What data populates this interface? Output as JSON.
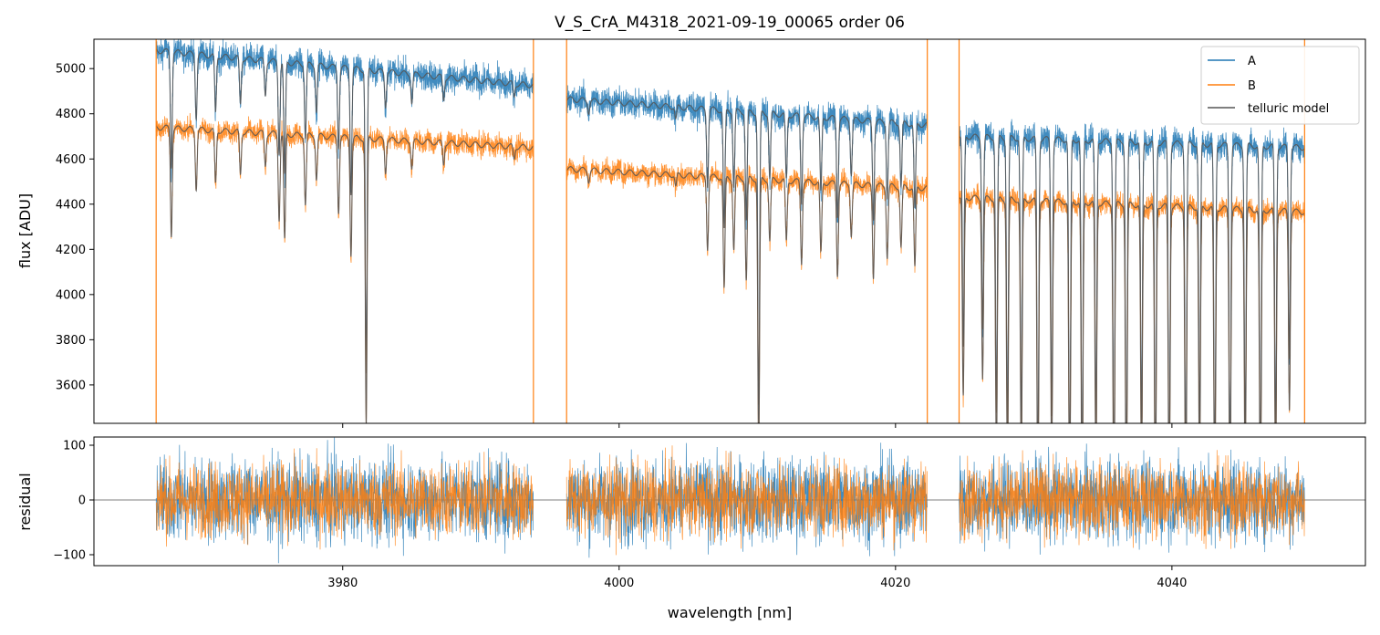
{
  "chart_data": {
    "title": "V_S_CrA_M4318_2021-09-19_00065  order 06",
    "xlabel": "wavelength [nm]",
    "xlim": [
      3962,
      4054
    ],
    "xticks": [
      3980,
      4000,
      4020,
      4040
    ],
    "segments": [
      [
        3966.5,
        3993.8
      ],
      [
        3996.2,
        4022.3
      ],
      [
        4024.6,
        4049.6
      ]
    ],
    "panels": [
      {
        "id": "flux",
        "type": "line",
        "ylabel": "flux [ADU]",
        "ylim": [
          3430,
          5130
        ],
        "yticks": [
          3600,
          3800,
          4000,
          4200,
          4400,
          4600,
          4800,
          5000
        ],
        "legend": {
          "placement": "top-right"
        },
        "series": [
          {
            "name": "A",
            "color": "#1f77b4",
            "segment_levels": [
              [
                5080,
                4925
              ],
              [
                4865,
                4750
              ],
              [
                4700,
                4650
              ]
            ],
            "noise": 45
          },
          {
            "name": "B",
            "color": "#ff7f0e",
            "segment_levels": [
              [
                4740,
                4650
              ],
              [
                4555,
                4470
              ],
              [
                4430,
                4365
              ]
            ],
            "noise": 35
          },
          {
            "name": "telluric model",
            "color": "#555555"
          }
        ],
        "telluric_lines": [
          {
            "x": 3967.6,
            "depth": 0.1
          },
          {
            "x": 3969.4,
            "depth": 0.055
          },
          {
            "x": 3970.8,
            "depth": 0.05
          },
          {
            "x": 3972.6,
            "depth": 0.04
          },
          {
            "x": 3974.4,
            "depth": 0.03
          },
          {
            "x": 3975.4,
            "depth": 0.08
          },
          {
            "x": 3975.8,
            "depth": 0.1
          },
          {
            "x": 3977.3,
            "depth": 0.065
          },
          {
            "x": 3978.1,
            "depth": 0.04
          },
          {
            "x": 3979.7,
            "depth": 0.07
          },
          {
            "x": 3980.6,
            "depth": 0.11
          },
          {
            "x": 3981.7,
            "depth": 0.27
          },
          {
            "x": 3983.1,
            "depth": 0.03
          },
          {
            "x": 3985.0,
            "depth": 0.025
          },
          {
            "x": 3987.3,
            "depth": 0.02
          },
          {
            "x": 3992.4,
            "depth": 0.012
          },
          {
            "x": 3997.8,
            "depth": 0.01
          },
          {
            "x": 4004.1,
            "depth": 0.012
          },
          {
            "x": 4006.4,
            "depth": 0.07
          },
          {
            "x": 4007.6,
            "depth": 0.11
          },
          {
            "x": 4008.3,
            "depth": 0.07
          },
          {
            "x": 4009.2,
            "depth": 0.1
          },
          {
            "x": 4010.1,
            "depth": 0.27
          },
          {
            "x": 4010.9,
            "depth": 0.06
          },
          {
            "x": 4012.1,
            "depth": 0.06
          },
          {
            "x": 4013.2,
            "depth": 0.08
          },
          {
            "x": 4014.6,
            "depth": 0.07
          },
          {
            "x": 4015.8,
            "depth": 0.09
          },
          {
            "x": 4016.8,
            "depth": 0.05
          },
          {
            "x": 4018.4,
            "depth": 0.09
          },
          {
            "x": 4019.4,
            "depth": 0.07
          },
          {
            "x": 4020.4,
            "depth": 0.06
          },
          {
            "x": 4021.4,
            "depth": 0.08
          },
          {
            "x": 4024.9,
            "depth": 0.2
          },
          {
            "x": 4026.3,
            "depth": 0.18
          },
          {
            "x": 4027.3,
            "depth": 0.26
          },
          {
            "x": 4028.1,
            "depth": 0.28
          },
          {
            "x": 4029.1,
            "depth": 0.27
          },
          {
            "x": 4030.3,
            "depth": 0.32
          },
          {
            "x": 4031.3,
            "depth": 0.26
          },
          {
            "x": 4032.6,
            "depth": 0.32
          },
          {
            "x": 4033.5,
            "depth": 0.32
          },
          {
            "x": 4034.5,
            "depth": 0.27
          },
          {
            "x": 4035.8,
            "depth": 0.32
          },
          {
            "x": 4036.7,
            "depth": 0.32
          },
          {
            "x": 4037.8,
            "depth": 0.27
          },
          {
            "x": 4038.8,
            "depth": 0.32
          },
          {
            "x": 4039.8,
            "depth": 0.32
          },
          {
            "x": 4041.0,
            "depth": 0.32
          },
          {
            "x": 4042.0,
            "depth": 0.27
          },
          {
            "x": 4043.1,
            "depth": 0.32
          },
          {
            "x": 4044.2,
            "depth": 0.32
          },
          {
            "x": 4045.3,
            "depth": 0.27
          },
          {
            "x": 4046.4,
            "depth": 0.32
          },
          {
            "x": 4047.5,
            "depth": 0.27
          },
          {
            "x": 4048.5,
            "depth": 0.2
          }
        ],
        "edge_spikes": [
          3966.5,
          3993.8,
          3996.2,
          4022.3,
          4024.6,
          4049.6
        ]
      },
      {
        "id": "residual",
        "type": "line",
        "ylabel": "residual",
        "ylim": [
          -120,
          115
        ],
        "yticks": [
          -100,
          0,
          100
        ],
        "zero_line": true,
        "series": [
          {
            "name": "A",
            "color": "#1f77b4",
            "noise": 55
          },
          {
            "name": "B",
            "color": "#ff7f0e",
            "noise": 48
          }
        ]
      }
    ]
  }
}
